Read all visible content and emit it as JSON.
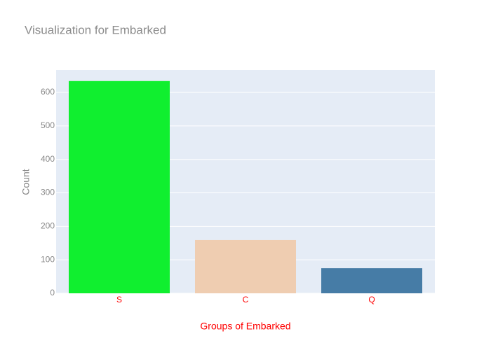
{
  "chart_data": {
    "type": "bar",
    "title": "Visualization for Embarked",
    "categories": [
      "S",
      "C",
      "Q"
    ],
    "values": [
      634,
      159,
      75
    ],
    "colors": [
      "#10ef2f",
      "#efcdb1",
      "#467ca6"
    ],
    "x_label": "Groups of Embarked",
    "y_label": "Count",
    "x_label_color": "#ff0000",
    "x_tick_color": "#ff0000",
    "ylim": [
      0,
      667
    ],
    "yticks": [
      0,
      100,
      200,
      300,
      400,
      500,
      600
    ],
    "grid": true
  }
}
